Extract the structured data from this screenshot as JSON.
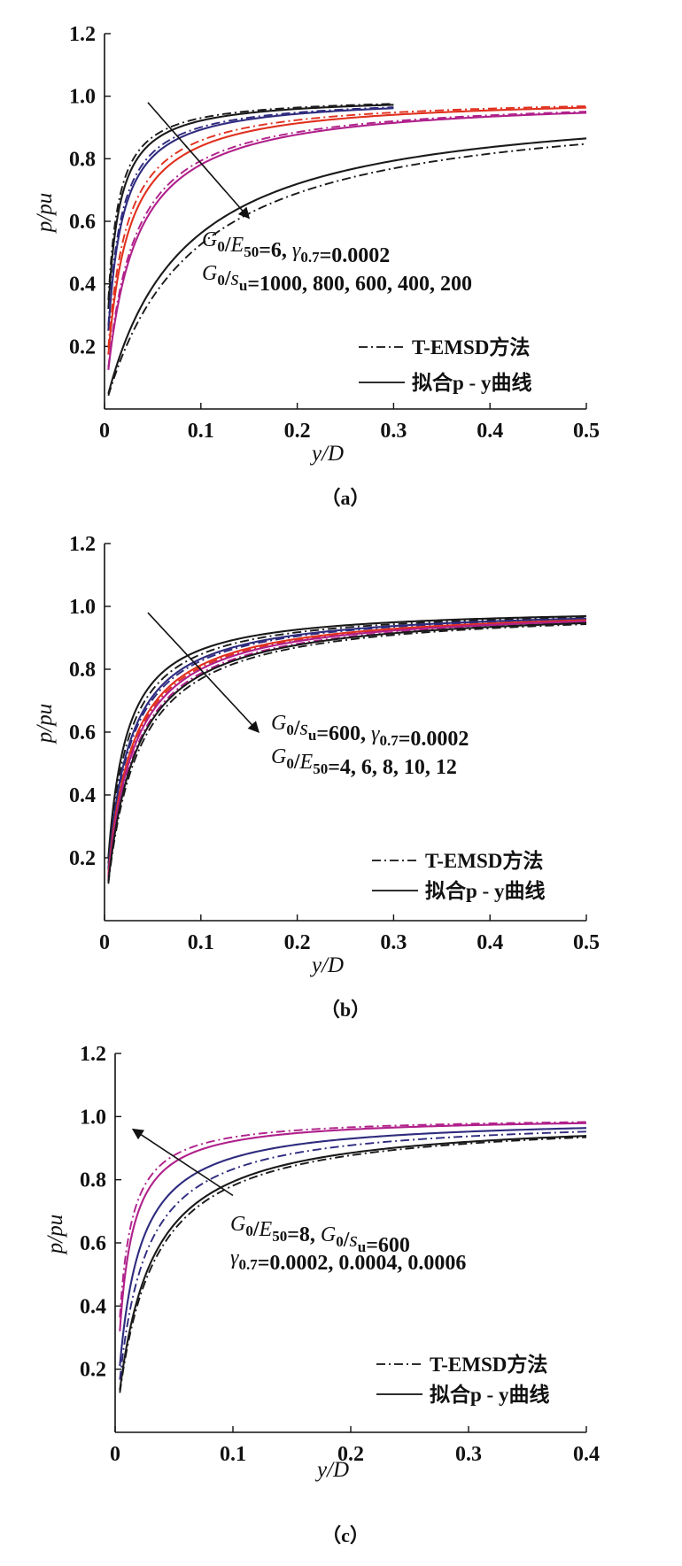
{
  "colors": {
    "black": "#1a1a1a",
    "navy": "#2e2b7e",
    "red": "#e0301e",
    "magenta": "#b0208a"
  },
  "legend": {
    "dashdot": "T-EMSD方法",
    "solid": "拟合p - y曲线"
  },
  "chart_data": [
    {
      "type": "line",
      "panel_label": "（a）",
      "xlabel": "y/D",
      "ylabel": "p/pu",
      "xlim": [
        0,
        0.5
      ],
      "ylim": [
        0,
        1.2
      ],
      "xticks": [
        "0",
        "0.1",
        "0.2",
        "0.3",
        "0.4",
        "0.5"
      ],
      "yticks": [
        "0.2",
        "0.4",
        "0.6",
        "0.8",
        "1.0",
        "1.2"
      ],
      "annotation_lines": [
        "G0/E50=6, γ0.7=0.0002",
        "G0/su=1000, 800, 600, 400, 200"
      ],
      "arrow": {
        "from": [
          0.045,
          0.98
        ],
        "to": [
          0.15,
          0.61
        ]
      },
      "series": [
        {
          "param": "G0/su=1000",
          "color": "black",
          "solid_k": 0.0085,
          "emsd_k": 0.0075,
          "x_max": 0.3
        },
        {
          "param": "G0/su=800",
          "color": "navy",
          "solid_k": 0.012,
          "emsd_k": 0.011,
          "x_max": 0.3
        },
        {
          "param": "G0/su=600",
          "color": "red",
          "solid_k": 0.019,
          "emsd_k": 0.0165,
          "x_max": 0.5
        },
        {
          "param": "G0/su=400",
          "color": "magenta",
          "solid_k": 0.028,
          "emsd_k": 0.026,
          "x_max": 0.5
        },
        {
          "param": "G0/su=200",
          "color": "black",
          "solid_k": 0.078,
          "emsd_k": 0.09,
          "x_max": 0.5
        }
      ]
    },
    {
      "type": "line",
      "panel_label": "（b）",
      "xlabel": "y/D",
      "ylabel": "p/pu",
      "xlim": [
        0,
        0.5
      ],
      "ylim": [
        0,
        1.2
      ],
      "xticks": [
        "0",
        "0.1",
        "0.2",
        "0.3",
        "0.4",
        "0.5"
      ],
      "yticks": [
        "0.2",
        "0.4",
        "0.6",
        "0.8",
        "1.0",
        "1.2"
      ],
      "annotation_lines": [
        "G0/su=600, γ0.7=0.0002",
        "G0/E50=4, 6, 8, 10, 12"
      ],
      "arrow": {
        "from": [
          0.045,
          0.98
        ],
        "to": [
          0.16,
          0.6
        ]
      },
      "series": [
        {
          "param": "G0/E50=4",
          "color": "black",
          "solid_k": 0.016,
          "emsd_k": 0.018,
          "x_max": 0.5
        },
        {
          "param": "G0/E50=6",
          "color": "navy",
          "solid_k": 0.02,
          "emsd_k": 0.021,
          "x_max": 0.5
        },
        {
          "param": "G0/E50=8",
          "color": "red",
          "solid_k": 0.023,
          "emsd_k": 0.024,
          "x_max": 0.5
        },
        {
          "param": "G0/E50=10",
          "color": "magenta",
          "solid_k": 0.025,
          "emsd_k": 0.027,
          "x_max": 0.5
        },
        {
          "param": "G0/E50=12",
          "color": "black",
          "solid_k": 0.028,
          "emsd_k": 0.03,
          "x_max": 0.5
        }
      ]
    },
    {
      "type": "line",
      "panel_label": "（c）",
      "xlabel": "y/D",
      "ylabel": "p/pu",
      "xlim": [
        0,
        0.4
      ],
      "ylim": [
        0,
        1.2
      ],
      "xticks": [
        "0",
        "0.1",
        "0.2",
        "0.3",
        "0.4"
      ],
      "yticks": [
        "0.2",
        "0.4",
        "0.6",
        "0.8",
        "1.0",
        "1.2"
      ],
      "annotation_lines": [
        "G0/E50=8, G0/su=600",
        "γ0.7=0.0002, 0.0004, 0.0006"
      ],
      "arrow": {
        "from": [
          0.1,
          0.75
        ],
        "to": [
          0.015,
          0.96
        ]
      },
      "series": [
        {
          "param": "γ0.7=0.0002",
          "color": "black",
          "solid_k": 0.026,
          "emsd_k": 0.028,
          "x_max": 0.4
        },
        {
          "param": "γ0.7=0.0004",
          "color": "navy",
          "solid_k": 0.015,
          "emsd_k": 0.02,
          "x_max": 0.4
        },
        {
          "param": "γ0.7=0.0006",
          "color": "magenta",
          "solid_k": 0.0085,
          "emsd_k": 0.007,
          "x_max": 0.4
        }
      ]
    }
  ]
}
